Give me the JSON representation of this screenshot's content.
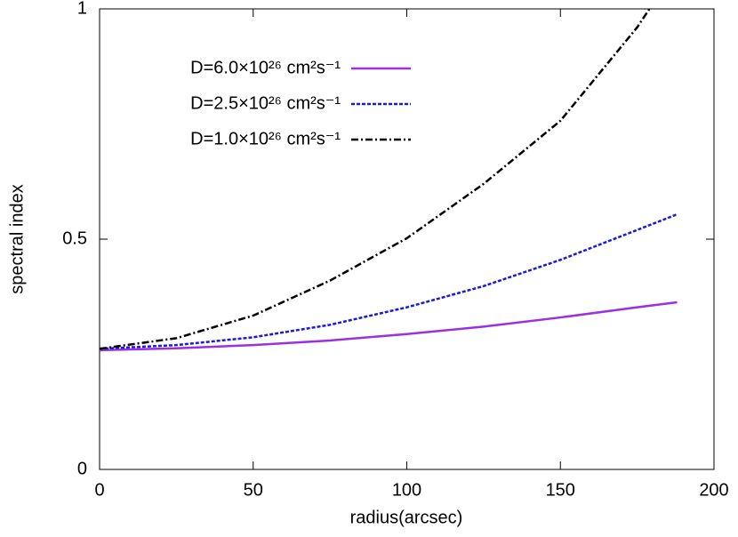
{
  "chart_data": {
    "type": "line",
    "xlabel": "radius(arcsec)",
    "ylabel": "spectral index",
    "xlim": [
      0,
      200
    ],
    "xticks": [
      0,
      50,
      100,
      150,
      200
    ],
    "ylim": [
      0,
      1
    ],
    "yticks": [
      0,
      0.5,
      1
    ],
    "legend": "upper left",
    "series": [
      {
        "name": "D=6.0×10²⁶ cm²s⁻¹",
        "color": "#9b30e0",
        "dash": "solid",
        "x": [
          0,
          25,
          50,
          75,
          100,
          125,
          150,
          175,
          188
        ],
        "values": [
          0.259,
          0.263,
          0.27,
          0.28,
          0.294,
          0.31,
          0.33,
          0.352,
          0.363
        ]
      },
      {
        "name": "D=2.5×10²⁶ cm²s⁻¹",
        "color": "#1a1adc",
        "dash": "dashed",
        "x": [
          0,
          25,
          50,
          75,
          100,
          125,
          150,
          175,
          188
        ],
        "values": [
          0.262,
          0.27,
          0.287,
          0.314,
          0.352,
          0.398,
          0.455,
          0.52,
          0.554
        ]
      },
      {
        "name": "D=1.0×10²⁶ cm²s⁻¹",
        "color": "#000000",
        "dash": "dashdot",
        "x": [
          0,
          25,
          50,
          75,
          100,
          125,
          150,
          175,
          179
        ],
        "values": [
          0.262,
          0.285,
          0.334,
          0.41,
          0.502,
          0.62,
          0.757,
          0.96,
          1.0
        ]
      }
    ]
  }
}
